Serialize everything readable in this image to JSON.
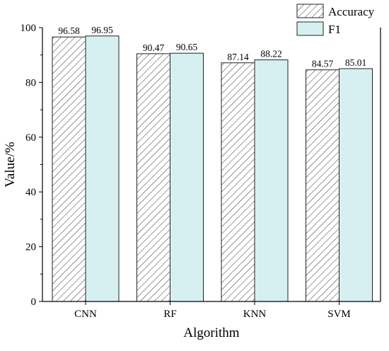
{
  "chart_data": {
    "type": "bar",
    "xlabel": "Algorithm",
    "ylabel": "Value/%",
    "categories": [
      "CNN",
      "RF",
      "KNN",
      "SVM"
    ],
    "series": [
      {
        "name": "Accuracy",
        "values": [
          96.58,
          90.47,
          87.14,
          84.57
        ],
        "fill": "hatched",
        "color": "#ffffff"
      },
      {
        "name": "F1",
        "values": [
          96.95,
          90.65,
          88.22,
          85.01
        ],
        "fill": "solid",
        "color": "#d6f0f2"
      }
    ],
    "data_labels": [
      [
        "96.58",
        "90.47",
        "87.14",
        "84.57"
      ],
      [
        "96.95",
        "90.65",
        "88.22",
        "85.01"
      ]
    ],
    "ylim": [
      0,
      100
    ],
    "yticks": [
      "0",
      "20",
      "40",
      "60",
      "80",
      "100"
    ],
    "grid": false,
    "legend": "top-right"
  }
}
